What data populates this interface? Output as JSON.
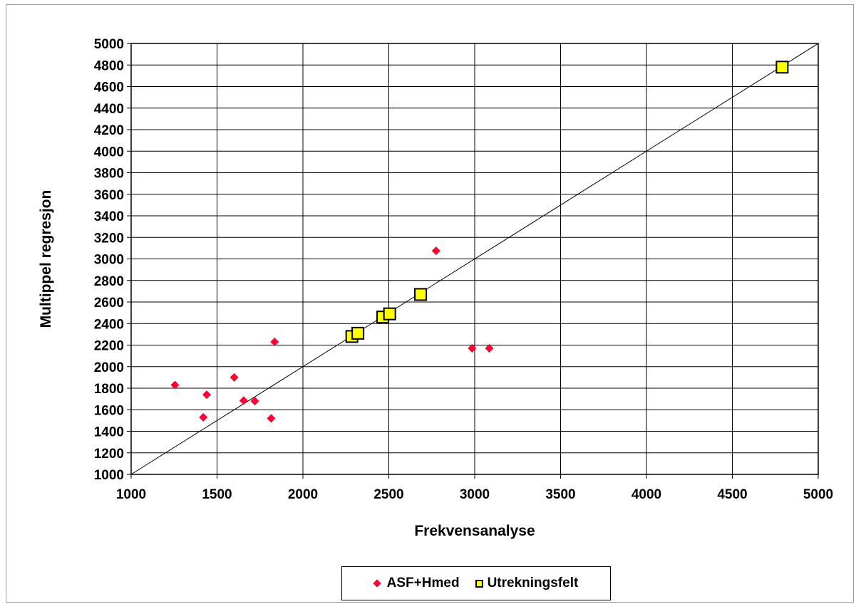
{
  "chart_data": {
    "type": "scatter",
    "xlabel": "Frekvensanalyse",
    "ylabel": "Multippel regresjon",
    "xlim": [
      1000,
      5000
    ],
    "ylim": [
      1000,
      5000
    ],
    "x_ticks": [
      1000,
      1500,
      2000,
      2500,
      3000,
      3500,
      4000,
      4500,
      5000
    ],
    "y_ticks": [
      1000,
      1200,
      1400,
      1600,
      1800,
      2000,
      2200,
      2400,
      2600,
      2800,
      3000,
      3200,
      3400,
      3600,
      3800,
      4000,
      4200,
      4400,
      4600,
      4800,
      5000
    ],
    "x_gridlines": [
      1000,
      1500,
      2000,
      2500,
      3000,
      3500,
      4000,
      4500,
      5000
    ],
    "y_gridlines": [
      1000,
      1200,
      1400,
      1600,
      1800,
      2000,
      2200,
      2400,
      2600,
      2800,
      3000,
      3200,
      3400,
      3600,
      3800,
      4000,
      4200,
      4400,
      4600,
      4800,
      5000
    ],
    "grid": true,
    "reference_line": {
      "x": [
        1000,
        5000
      ],
      "y": [
        1000,
        5000
      ]
    },
    "legend_position": "bottom",
    "series": [
      {
        "name": "ASF+Hmed",
        "marker": "diamond",
        "color": "#ff0033",
        "points": [
          {
            "x": 1255,
            "y": 1830
          },
          {
            "x": 1420,
            "y": 1530
          },
          {
            "x": 1440,
            "y": 1740
          },
          {
            "x": 1600,
            "y": 1900
          },
          {
            "x": 1655,
            "y": 1685
          },
          {
            "x": 1720,
            "y": 1680
          },
          {
            "x": 1815,
            "y": 1520
          },
          {
            "x": 1835,
            "y": 2230
          },
          {
            "x": 2775,
            "y": 3075
          },
          {
            "x": 2985,
            "y": 2170
          },
          {
            "x": 3085,
            "y": 2170
          }
        ]
      },
      {
        "name": "Utrekningsfelt",
        "marker": "square",
        "color": "#ffff00",
        "points": [
          {
            "x": 2285,
            "y": 2280
          },
          {
            "x": 2320,
            "y": 2310
          },
          {
            "x": 2465,
            "y": 2460
          },
          {
            "x": 2505,
            "y": 2490
          },
          {
            "x": 2685,
            "y": 2670
          },
          {
            "x": 4790,
            "y": 4780
          }
        ]
      }
    ]
  }
}
